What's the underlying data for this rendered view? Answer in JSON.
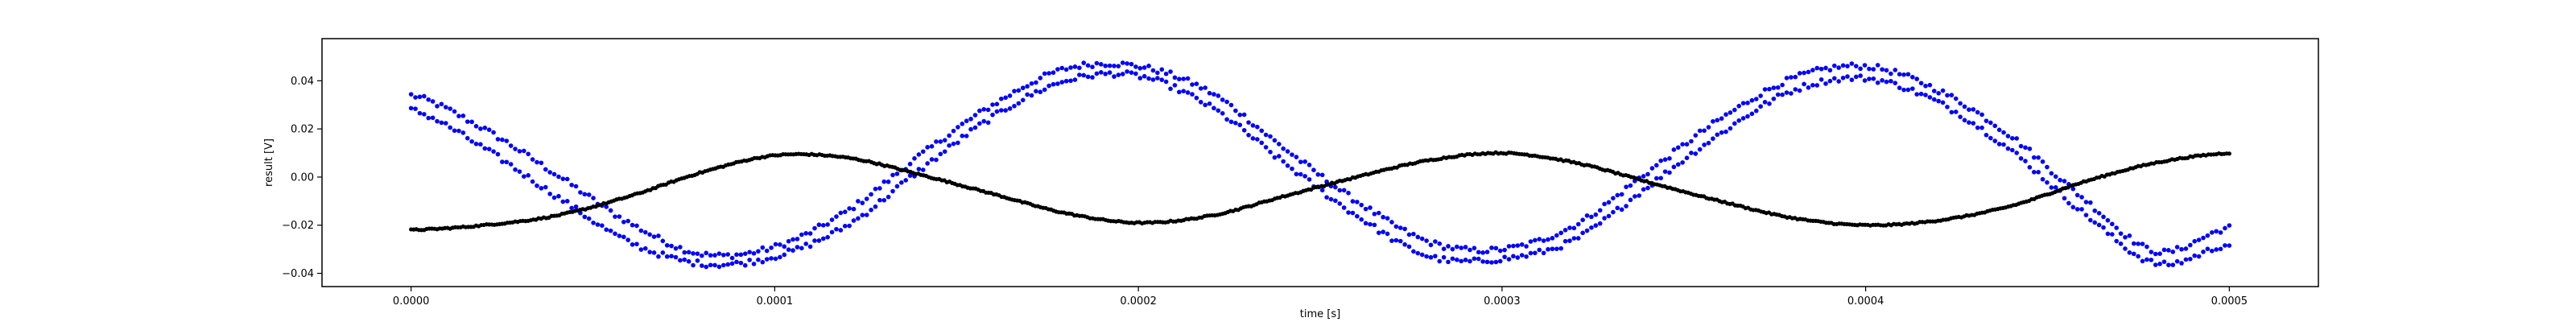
{
  "chart_data": {
    "type": "scatter",
    "xlabel": "time [s]",
    "ylabel": "result [V]",
    "xlim": [
      -2.45e-05,
      0.0005245
    ],
    "ylim": [
      -0.0455,
      0.0575
    ],
    "x_ticks": [
      {
        "value": 0.0,
        "label": "0.0000"
      },
      {
        "value": 0.0001,
        "label": "0.0001"
      },
      {
        "value": 0.0002,
        "label": "0.0002"
      },
      {
        "value": 0.0003,
        "label": "0.0003"
      },
      {
        "value": 0.0004,
        "label": "0.0004"
      },
      {
        "value": 0.0005,
        "label": "0.0005"
      }
    ],
    "y_ticks": [
      {
        "value": -0.04,
        "label": "−0.04"
      },
      {
        "value": -0.02,
        "label": "−0.02"
      },
      {
        "value": 0.0,
        "label": "0.00"
      },
      {
        "value": 0.02,
        "label": "0.02"
      },
      {
        "value": 0.04,
        "label": "0.04"
      }
    ],
    "grid": false,
    "legend": "none",
    "series": [
      {
        "color": "#0000ff",
        "x": [
          0.0,
          2e-05,
          4e-05,
          6e-05,
          8e-05,
          0.0001,
          0.00012,
          0.00014,
          0.00016,
          0.00018,
          0.0002,
          0.00022,
          0.00024,
          0.00026,
          0.00028,
          0.0003,
          0.00032,
          0.00034,
          0.00036,
          0.00038,
          0.0004,
          0.00042,
          0.00044,
          0.00046,
          0.00048,
          0.0005
        ],
        "y": [
          0.034,
          0.02,
          0.001,
          -0.019,
          -0.032,
          -0.029,
          -0.014,
          0.009,
          0.03,
          0.045,
          0.046,
          0.035,
          0.012,
          -0.01,
          -0.027,
          -0.03,
          -0.02,
          0.002,
          0.024,
          0.041,
          0.046,
          0.036,
          0.017,
          -0.009,
          -0.031,
          -0.021
        ]
      },
      {
        "color": "#0000ff",
        "x": [
          0.0,
          2e-05,
          4e-05,
          6e-05,
          8e-05,
          0.0001,
          0.00012,
          0.00014,
          0.00016,
          0.00018,
          0.0002,
          0.00022,
          0.00024,
          0.00026,
          0.00028,
          0.0003,
          0.00032,
          0.00034,
          0.00036,
          0.00038,
          0.0004,
          0.00042,
          0.00044,
          0.00046,
          0.00048,
          0.0005
        ],
        "y": [
          0.028,
          0.012,
          -0.008,
          -0.027,
          -0.036,
          -0.033,
          -0.02,
          0.003,
          0.025,
          0.04,
          0.042,
          0.029,
          0.006,
          -0.016,
          -0.033,
          -0.034,
          -0.026,
          -0.004,
          0.018,
          0.036,
          0.041,
          0.031,
          0.011,
          -0.015,
          -0.036,
          -0.028
        ]
      },
      {
        "color": "#000000",
        "x": [
          0.0,
          2e-05,
          4e-05,
          6e-05,
          8e-05,
          0.0001,
          0.00012,
          0.00014,
          0.00016,
          0.00018,
          0.0002,
          0.00022,
          0.00024,
          0.00026,
          0.00028,
          0.0003,
          0.00032,
          0.00034,
          0.00036,
          0.00038,
          0.0004,
          0.00042,
          0.00044,
          0.00046,
          0.00048,
          0.0005
        ],
        "y": [
          -0.022,
          -0.02,
          -0.016,
          -0.008,
          0.002,
          0.009,
          0.008,
          0.001,
          -0.007,
          -0.015,
          -0.019,
          -0.016,
          -0.008,
          0.0,
          0.007,
          0.01,
          0.006,
          -0.002,
          -0.01,
          -0.017,
          -0.02,
          -0.018,
          -0.012,
          -0.002,
          0.006,
          0.01
        ]
      }
    ]
  }
}
